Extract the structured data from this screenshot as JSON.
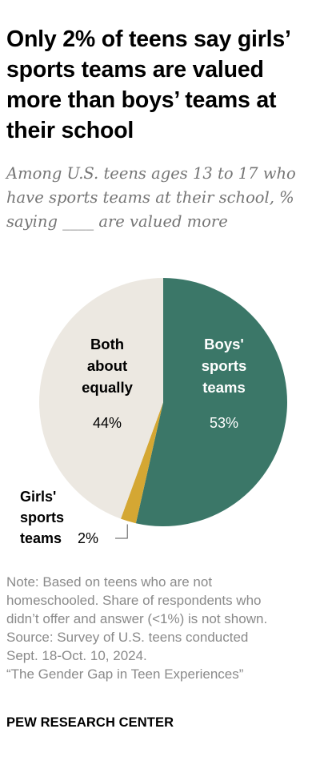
{
  "header": {
    "title_lines": [
      "Only 2% of teens say girls’",
      "sports teams are valued",
      "more than boys’ teams at",
      "their school"
    ],
    "subtitle_lines": [
      "Among U.S. teens ages 13 to 17 who",
      "have sports teams at their school, %",
      "saying ____ are valued more"
    ]
  },
  "chart_data": {
    "type": "pie",
    "start": "12 o'clock",
    "direction": "clockwise",
    "slices": [
      {
        "label_lines": [
          "Boys'",
          "sports",
          "teams"
        ],
        "value": 53,
        "value_label": "53%",
        "color": "#3b7768",
        "label_color": "#ffffff"
      },
      {
        "label_lines": [
          "Girls'",
          "sports",
          "teams"
        ],
        "value": 2,
        "value_label": "2%",
        "color": "#d4a733",
        "label_color": "#000000"
      },
      {
        "label_lines": [
          "Both",
          "about",
          "equally"
        ],
        "value": 44,
        "value_label": "44%",
        "color": "#ece8e1",
        "label_color": "#000000"
      }
    ]
  },
  "notes": {
    "lines": [
      "Note: Based on teens who are not",
      "homeschooled. Share of respondents who",
      "didn’t offer and answer (<1%) is not shown.",
      "Source: Survey of U.S. teens conducted",
      "Sept. 18-Oct. 10, 2024.",
      "“The Gender Gap in Teen Experiences”"
    ]
  },
  "footer": {
    "source_org": "PEW RESEARCH CENTER"
  }
}
